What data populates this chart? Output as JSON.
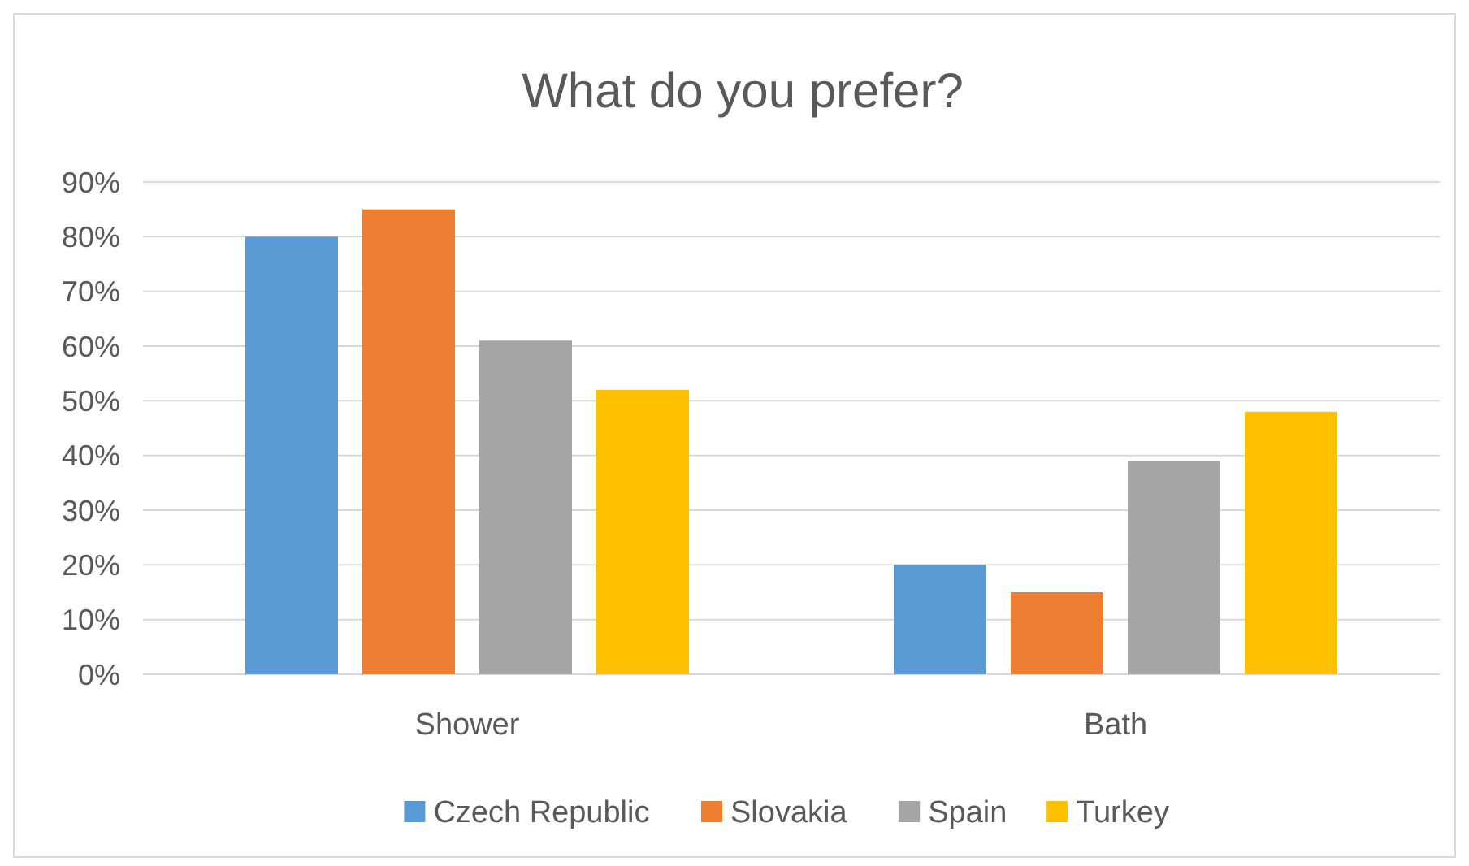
{
  "chart_data": {
    "type": "bar",
    "title": "What do you prefer?",
    "categories": [
      "Shower",
      "Bath"
    ],
    "series": [
      {
        "name": "Czech Republic",
        "color": "#5b9bd5",
        "values": [
          80,
          20
        ]
      },
      {
        "name": "Slovakia",
        "color": "#ed7d31",
        "values": [
          85,
          15
        ]
      },
      {
        "name": "Spain",
        "color": "#a5a5a5",
        "values": [
          61,
          39
        ]
      },
      {
        "name": "Turkey",
        "color": "#ffc000",
        "values": [
          52,
          48
        ]
      }
    ],
    "ylim": [
      0,
      90
    ],
    "yticks": [
      {
        "value": 0,
        "label": "0%"
      },
      {
        "value": 10,
        "label": "10%"
      },
      {
        "value": 20,
        "label": "20%"
      },
      {
        "value": 30,
        "label": "30%"
      },
      {
        "value": 40,
        "label": "40%"
      },
      {
        "value": 50,
        "label": "50%"
      },
      {
        "value": 60,
        "label": "60%"
      },
      {
        "value": 70,
        "label": "70%"
      },
      {
        "value": 80,
        "label": "80%"
      },
      {
        "value": 90,
        "label": "90%"
      }
    ],
    "grid": true,
    "legend": "bottom"
  }
}
